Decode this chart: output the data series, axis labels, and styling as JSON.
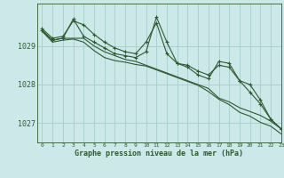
{
  "title": "Graphe pression niveau de la mer (hPa)",
  "bg_color": "#cce8e8",
  "grid_color": "#aad0d0",
  "line_color": "#2d5a2d",
  "xlim": [
    -0.5,
    23
  ],
  "ylim": [
    1026.5,
    1030.1
  ],
  "yticks": [
    1027,
    1028,
    1029
  ],
  "xticks": [
    0,
    1,
    2,
    3,
    4,
    5,
    6,
    7,
    8,
    9,
    10,
    11,
    12,
    13,
    14,
    15,
    16,
    17,
    18,
    19,
    20,
    21,
    22,
    23
  ],
  "series": [
    [
      1029.45,
      1029.2,
      1029.25,
      1029.65,
      1029.55,
      1029.3,
      1029.1,
      1028.95,
      1028.85,
      1028.8,
      1029.1,
      1029.6,
      1028.8,
      1028.55,
      1028.5,
      1028.35,
      1028.25,
      1028.5,
      1028.45,
      1028.1,
      1027.8,
      1027.5,
      1027.1,
      1026.85
    ],
    [
      1029.4,
      1029.15,
      1029.2,
      1029.7,
      1029.25,
      1029.1,
      1028.95,
      1028.8,
      1028.75,
      1028.7,
      1028.85,
      1029.75,
      1029.1,
      1028.55,
      1028.45,
      1028.25,
      1028.15,
      1028.6,
      1028.55,
      1028.1,
      1028.0,
      1027.6,
      1027.1,
      1026.85
    ],
    [
      1029.4,
      1029.15,
      1029.2,
      1029.2,
      1029.2,
      1029.0,
      1028.85,
      1028.75,
      1028.65,
      1028.6,
      1028.5,
      1028.4,
      1028.3,
      1028.2,
      1028.1,
      1028.0,
      1027.9,
      1027.65,
      1027.55,
      1027.4,
      1027.3,
      1027.2,
      1027.05,
      1026.85
    ],
    [
      1029.38,
      1029.1,
      1029.15,
      1029.18,
      1029.1,
      1028.88,
      1028.7,
      1028.62,
      1028.58,
      1028.52,
      1028.48,
      1028.38,
      1028.28,
      1028.18,
      1028.08,
      1027.98,
      1027.82,
      1027.62,
      1027.48,
      1027.28,
      1027.18,
      1027.02,
      1026.92,
      1026.72
    ]
  ],
  "marker_series": [
    0,
    1
  ],
  "no_marker_series": [
    2,
    3
  ]
}
